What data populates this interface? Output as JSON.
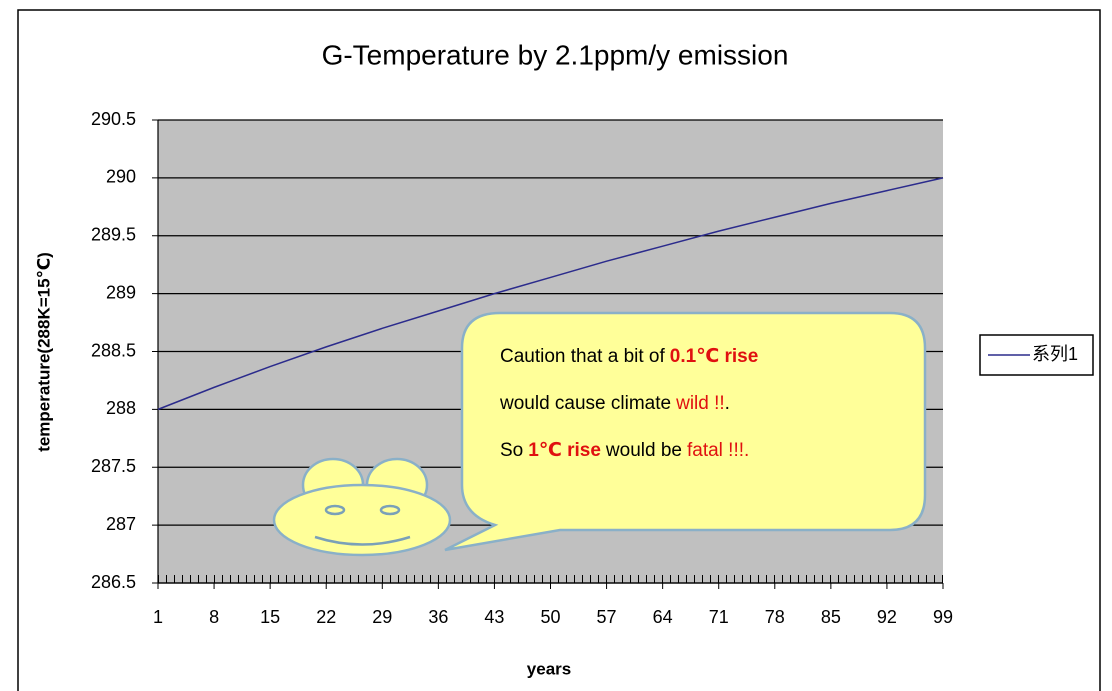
{
  "chart_data": {
    "type": "line",
    "title": "G-Temperature by 2.1ppm/y emission",
    "x_label": "years",
    "y_label": "temperature(288K=15℃)",
    "x": [
      1,
      8,
      15,
      22,
      29,
      36,
      43,
      50,
      57,
      64,
      71,
      78,
      85,
      92,
      99
    ],
    "series": [
      {
        "name": "系列1",
        "color": "#2b2b8c",
        "values": [
          288.0,
          288.19,
          288.37,
          288.54,
          288.7,
          288.85,
          289.0,
          289.14,
          289.28,
          289.41,
          289.54,
          289.66,
          289.78,
          289.89,
          290.0
        ]
      }
    ],
    "xlim": [
      1,
      99
    ],
    "xticks": [
      1,
      8,
      15,
      22,
      29,
      36,
      43,
      50,
      57,
      64,
      71,
      78,
      85,
      92,
      99
    ],
    "ylim": [
      286.5,
      290.5
    ],
    "yticks": [
      286.5,
      287,
      287.5,
      288,
      288.5,
      289,
      289.5,
      290,
      290.5
    ],
    "grid": true,
    "legend": "right",
    "annotation": [
      [
        "Caution that a bit of",
        "0.1℃ rise"
      ],
      [
        "would cause climate",
        "wild !!",
        "."
      ],
      [
        "So",
        "1℃ rise",
        "would be",
        "fatal !!!."
      ]
    ]
  }
}
